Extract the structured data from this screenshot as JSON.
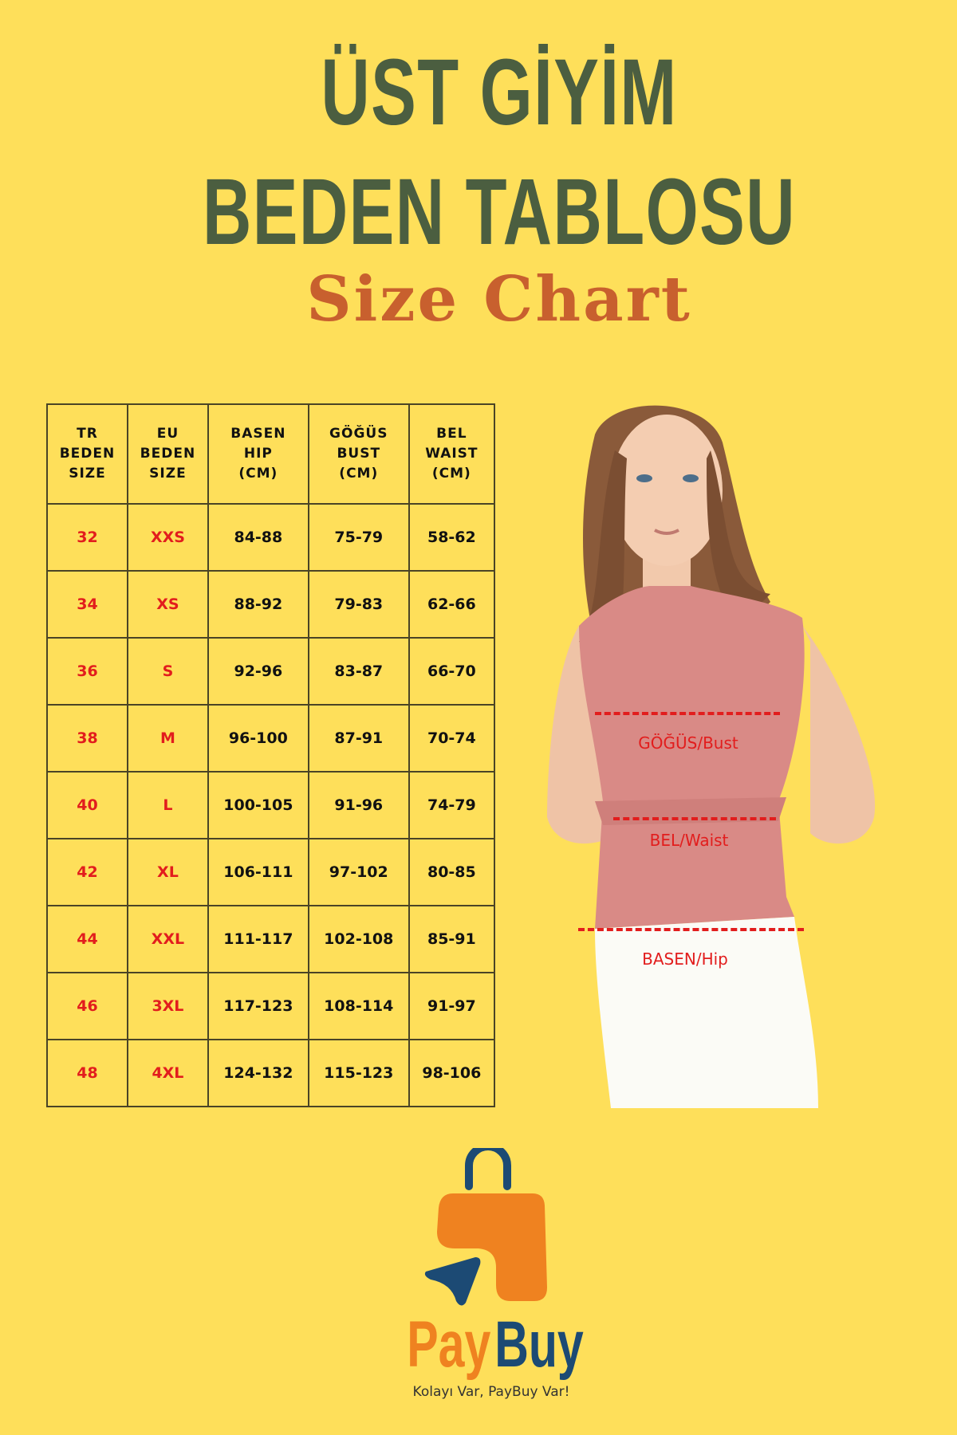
{
  "title_line1": "ÜST GİYİM",
  "title_line2": "BEDEN TABLOSU",
  "subtitle": "Size Chart",
  "table": {
    "headers": [
      "TR\nBEDEN\nSIZE",
      "EU\nBEDEN\nSIZE",
      "BASEN\nHIP\n(CM)",
      "GÖĞÜS\nBUST\n(CM)",
      "BEL\nWAIST\n(CM)"
    ],
    "rows": [
      [
        "32",
        "XXS",
        "84-88",
        "75-79",
        "58-62"
      ],
      [
        "34",
        "XS",
        "88-92",
        "79-83",
        "62-66"
      ],
      [
        "36",
        "S",
        "92-96",
        "83-87",
        "66-70"
      ],
      [
        "38",
        "M",
        "96-100",
        "87-91",
        "70-74"
      ],
      [
        "40",
        "L",
        "100-105",
        "91-96",
        "74-79"
      ],
      [
        "42",
        "XL",
        "106-111",
        "97-102",
        "80-85"
      ],
      [
        "44",
        "XXL",
        "111-117",
        "102-108",
        "85-91"
      ],
      [
        "46",
        "3XL",
        "117-123",
        "108-114",
        "91-97"
      ],
      [
        "48",
        "4XL",
        "124-132",
        "115-123",
        "98-106"
      ]
    ]
  },
  "measurements": {
    "bust": "GÖĞÜS/Bust",
    "waist": "BEL/Waist",
    "hip": "BASEN/Hip"
  },
  "logo": {
    "brand_part1": "Pay",
    "brand_part2": "Buy",
    "tagline": "Kolayı Var, PayBuy Var!"
  },
  "colors": {
    "background": "#fedf5a",
    "title": "#4b5e40",
    "subtitle": "#c8602e",
    "size_red": "#e21d1d",
    "logo_orange": "#ef8220",
    "logo_blue": "#1c4a74"
  }
}
